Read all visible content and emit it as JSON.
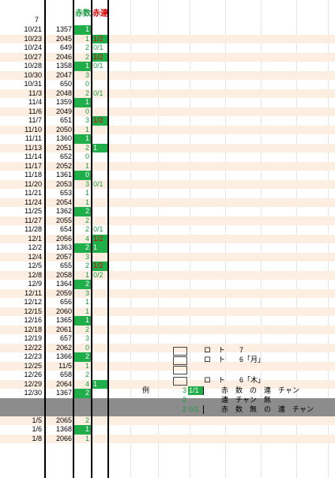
{
  "header": {
    "count_label": "赤数",
    "ren_label": "赤連",
    "col_number": "7"
  },
  "colors": {
    "green": "#1fae4a",
    "red_text": "#d60000",
    "peach": "#fdeee2",
    "gray": "#8c8c8c"
  },
  "rows": [
    {
      "date": "10/21",
      "num": "1357",
      "count": "1",
      "cg": true,
      "ren": "",
      "rg": false,
      "rc": ""
    },
    {
      "date": "10/23",
      "num": "2045",
      "count": "1",
      "cg": false,
      "ren": "1/2",
      "rg": true,
      "rc": "r"
    },
    {
      "date": "10/24",
      "num": "649",
      "count": "2",
      "cg": false,
      "ren": "0/1",
      "rg": false,
      "rc": "g"
    },
    {
      "date": "10/27",
      "num": "2046",
      "count": "2",
      "cg": false,
      "ren": "1/2",
      "rg": true,
      "rc": "r"
    },
    {
      "date": "10/28",
      "num": "1358",
      "count": "1",
      "cg": true,
      "ren": "0/1",
      "rg": false,
      "rc": "g"
    },
    {
      "date": "10/30",
      "num": "2047",
      "count": "3",
      "cg": false,
      "ren": "",
      "rg": false,
      "rc": ""
    },
    {
      "date": "10/31",
      "num": "650",
      "count": "0",
      "cg": false,
      "ren": "",
      "rg": false,
      "rc": ""
    },
    {
      "date": "11/3",
      "num": "2048",
      "count": "2",
      "cg": false,
      "ren": "0/1",
      "rg": false,
      "rc": "g"
    },
    {
      "date": "11/4",
      "num": "1359",
      "count": "1",
      "cg": true,
      "ren": "",
      "rg": false,
      "rc": ""
    },
    {
      "date": "11/6",
      "num": "2049",
      "count": "0",
      "cg": false,
      "ren": "",
      "rg": false,
      "rc": ""
    },
    {
      "date": "11/7",
      "num": "651",
      "count": "3",
      "cg": false,
      "ren": "1/2",
      "rg": true,
      "rc": "r"
    },
    {
      "date": "11/10",
      "num": "2050",
      "count": "1",
      "cg": false,
      "ren": "",
      "rg": false,
      "rc": ""
    },
    {
      "date": "11/11",
      "num": "1360",
      "count": "1",
      "cg": true,
      "ren": "",
      "rg": false,
      "rc": ""
    },
    {
      "date": "11/13",
      "num": "2051",
      "count": "2",
      "cg": false,
      "ren": "1",
      "rg": true,
      "rc": ""
    },
    {
      "date": "11/14",
      "num": "652",
      "count": "0",
      "cg": false,
      "ren": "",
      "rg": false,
      "rc": ""
    },
    {
      "date": "11/17",
      "num": "2052",
      "count": "1",
      "cg": false,
      "ren": "",
      "rg": false,
      "rc": ""
    },
    {
      "date": "11/18",
      "num": "1361",
      "count": "0",
      "cg": true,
      "ren": "",
      "rg": false,
      "rc": ""
    },
    {
      "date": "11/20",
      "num": "2053",
      "count": "3",
      "cg": false,
      "ren": "0/1",
      "rg": false,
      "rc": "g"
    },
    {
      "date": "11/21",
      "num": "653",
      "count": "1",
      "cg": false,
      "ren": "",
      "rg": false,
      "rc": ""
    },
    {
      "date": "11/24",
      "num": "2054",
      "count": "1",
      "cg": false,
      "ren": "",
      "rg": false,
      "rc": ""
    },
    {
      "date": "11/25",
      "num": "1362",
      "count": "2",
      "cg": true,
      "ren": "",
      "rg": false,
      "rc": ""
    },
    {
      "date": "11/27",
      "num": "2055",
      "count": "2",
      "cg": false,
      "ren": "",
      "rg": false,
      "rc": ""
    },
    {
      "date": "11/28",
      "num": "654",
      "count": "2",
      "cg": false,
      "ren": "0/1",
      "rg": false,
      "rc": "g"
    },
    {
      "date": "12/1",
      "num": "2056",
      "count": "4",
      "cg": false,
      "ren": "1/2",
      "rg": true,
      "rc": "r"
    },
    {
      "date": "12/2",
      "num": "1363",
      "count": "2",
      "cg": true,
      "ren": "1",
      "rg": true,
      "rc": ""
    },
    {
      "date": "12/4",
      "num": "2057",
      "count": "3",
      "cg": false,
      "ren": "",
      "rg": false,
      "rc": ""
    },
    {
      "date": "12/5",
      "num": "655",
      "count": "2",
      "cg": false,
      "ren": "1/2",
      "rg": true,
      "rc": "r"
    },
    {
      "date": "12/8",
      "num": "2058",
      "count": "1",
      "cg": false,
      "ren": "0/2",
      "rg": false,
      "rc": "g"
    },
    {
      "date": "12/9",
      "num": "1364",
      "count": "2",
      "cg": true,
      "ren": "",
      "rg": false,
      "rc": ""
    },
    {
      "date": "12/11",
      "num": "2059",
      "count": "3",
      "cg": false,
      "ren": "",
      "rg": false,
      "rc": ""
    },
    {
      "date": "12/12",
      "num": "656",
      "count": "1",
      "cg": false,
      "ren": "",
      "rg": false,
      "rc": ""
    },
    {
      "date": "12/15",
      "num": "2060",
      "count": "1",
      "cg": false,
      "ren": "",
      "rg": false,
      "rc": ""
    },
    {
      "date": "12/16",
      "num": "1365",
      "count": "1",
      "cg": true,
      "ren": "",
      "rg": false,
      "rc": ""
    },
    {
      "date": "12/18",
      "num": "2061",
      "count": "2",
      "cg": false,
      "ren": "",
      "rg": false,
      "rc": ""
    },
    {
      "date": "12/19",
      "num": "657",
      "count": "3",
      "cg": false,
      "ren": "",
      "rg": false,
      "rc": ""
    },
    {
      "date": "12/22",
      "num": "2062",
      "count": "0",
      "cg": false,
      "ren": "",
      "rg": false,
      "rc": ""
    },
    {
      "date": "12/23",
      "num": "1366",
      "count": "2",
      "cg": true,
      "ren": "",
      "rg": false,
      "rc": ""
    },
    {
      "date": "12/25",
      "num": "11/5",
      "count": "1",
      "cg": false,
      "ren": "",
      "rg": false,
      "rc": ""
    },
    {
      "date": "12/26",
      "num": "658",
      "count": "2",
      "cg": false,
      "ren": "",
      "rg": false,
      "rc": ""
    },
    {
      "date": "12/29",
      "num": "2064",
      "count": "4",
      "cg": false,
      "ren": "1",
      "rg": true,
      "rc": ""
    },
    {
      "date": "12/30",
      "num": "1367",
      "count": "2",
      "cg": true,
      "ren": "",
      "rg": false,
      "rc": ""
    },
    {
      "date": "",
      "num": "",
      "count": "",
      "cg": false,
      "ren": "",
      "rg": false,
      "rc": ""
    },
    {
      "date": "",
      "num": "",
      "count": "",
      "cg": false,
      "ren": "",
      "rg": false,
      "rc": ""
    },
    {
      "date": "1/5",
      "num": "2065",
      "count": "2",
      "cg": false,
      "ren": "",
      "rg": false,
      "rc": ""
    },
    {
      "date": "1/6",
      "num": "1368",
      "count": "1",
      "cg": true,
      "ren": "",
      "rg": false,
      "rc": ""
    },
    {
      "date": "1/8",
      "num": "2066",
      "count": "1",
      "cg": false,
      "ren": "",
      "rg": false,
      "rc": ""
    }
  ],
  "legend": {
    "lines": [
      {
        "text": "ロ　ト　　7"
      },
      {
        "text": "ロ　ト　　6「月」"
      },
      {
        "text": ""
      },
      {
        "text": "ロ　ト　　6「木」"
      }
    ],
    "example_label": "例",
    "examples": [
      {
        "count": "3",
        "ren": "1/1",
        "desc": "赤　数　の　連　チャン"
      },
      {
        "count": "2",
        "ren": "",
        "desc": "連　チャン　無"
      },
      {
        "count": "2",
        "ren": "0/1",
        "desc": "赤　数　無　の　連　チャン"
      }
    ]
  }
}
